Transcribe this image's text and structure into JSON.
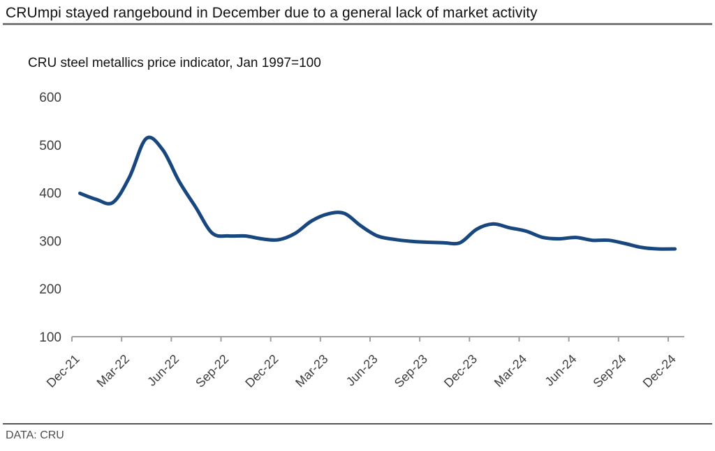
{
  "header": {
    "title": "CRUmpi stayed rangebound in December due to a general lack of market activity"
  },
  "chart_data": {
    "type": "line",
    "title": "CRU steel metallics price indicator, Jan 1997=100",
    "x": [
      "Dec-21",
      "Jan-22",
      "Feb-22",
      "Mar-22",
      "Apr-22",
      "May-22",
      "Jun-22",
      "Jul-22",
      "Aug-22",
      "Sep-22",
      "Oct-22",
      "Nov-22",
      "Dec-22",
      "Jan-23",
      "Feb-23",
      "Mar-23",
      "Apr-23",
      "May-23",
      "Jun-23",
      "Jul-23",
      "Aug-23",
      "Sep-23",
      "Oct-23",
      "Nov-23",
      "Dec-23",
      "Jan-24",
      "Feb-24",
      "Mar-24",
      "Apr-24",
      "May-24",
      "Jun-24",
      "Jul-24",
      "Aug-24",
      "Sep-24",
      "Oct-24",
      "Nov-24",
      "Dec-24"
    ],
    "values": [
      399,
      386,
      380,
      433,
      513,
      490,
      424,
      370,
      316,
      310,
      310,
      304,
      302,
      315,
      341,
      356,
      357,
      331,
      310,
      303,
      299,
      297,
      296,
      296,
      324,
      335,
      327,
      320,
      307,
      304,
      307,
      301,
      301,
      294,
      286,
      283,
      283
    ],
    "xtick_labels": [
      "Dec-21",
      "Mar-22",
      "Jun-22",
      "Sep-22",
      "Dec-22",
      "Mar-23",
      "Jun-23",
      "Sep-23",
      "Dec-23",
      "Mar-24",
      "Jun-24",
      "Sep-24",
      "Dec-24"
    ],
    "yticks": [
      100,
      200,
      300,
      400,
      500,
      600
    ],
    "ylim": [
      100,
      600
    ],
    "xlabel": "",
    "ylabel": "",
    "grid": false,
    "legend_position": "none",
    "line_color": "#17477E",
    "axis_color": "#9e9e9e",
    "tick_label_color": "#3d3d3d"
  },
  "footer": {
    "source": "DATA: CRU"
  }
}
